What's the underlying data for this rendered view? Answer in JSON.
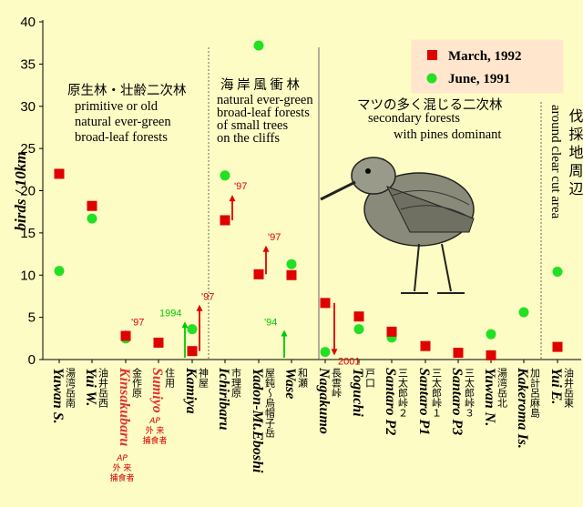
{
  "chart_data": {
    "type": "scatter",
    "title": "",
    "xlabel": "",
    "ylabel": "birds / 10km",
    "ylim": [
      0,
      40
    ],
    "yticks": [
      0,
      5,
      10,
      15,
      20,
      25,
      30,
      35,
      40
    ],
    "legend_position": "top-right",
    "colors": {
      "march": "#e00000",
      "june": "#22e022",
      "annotation": "#e00000",
      "annotation_june": "#00c800"
    },
    "sites": [
      {
        "name": "Yuwan S.",
        "color": "#000",
        "jp": "湯湾岳南",
        "sub": ""
      },
      {
        "name": "Yui W.",
        "color": "#000",
        "jp": "油井岳西",
        "sub": ""
      },
      {
        "name": "Kinsakubaru",
        "color": "#e03030",
        "jp": "金作原",
        "sub": "AP 外 来 捕食者"
      },
      {
        "name": "Sumiyo",
        "color": "#e03030",
        "jp": "住用",
        "sub": "AP 外 来 捕食者"
      },
      {
        "name": "Kamiya",
        "color": "#000",
        "jp": "神屋",
        "sub": ""
      },
      {
        "name": "Ichiribaru",
        "color": "#000",
        "jp": "市理原",
        "sub": ""
      },
      {
        "name": "Yadon-Mt.Eboshi",
        "color": "#000",
        "jp": "屋鈍～烏帽子岳",
        "sub": ""
      },
      {
        "name": "Wase",
        "color": "#000",
        "jp": "和瀬",
        "sub": ""
      },
      {
        "name": "Nagakumo",
        "color": "#000",
        "jp": "長雲峠",
        "sub": ""
      },
      {
        "name": "Toguchi",
        "color": "#000",
        "jp": "戸口",
        "sub": ""
      },
      {
        "name": "Santaro P2",
        "color": "#000",
        "jp": "三太郎峠２",
        "sub": ""
      },
      {
        "name": "Santaro P1",
        "color": "#000",
        "jp": "三太郎峠１",
        "sub": ""
      },
      {
        "name": "Santaro P3",
        "color": "#000",
        "jp": "三太郎峠３",
        "sub": ""
      },
      {
        "name": "Yuwan N.",
        "color": "#000",
        "jp": "湯湾岳北",
        "sub": ""
      },
      {
        "name": "Kakeroma Is.",
        "color": "#000",
        "jp": "加計呂麻島",
        "sub": ""
      },
      {
        "name": "Yui E.",
        "color": "#000",
        "jp": "油井岳東",
        "sub": ""
      }
    ],
    "series": [
      {
        "name": "March, 1992",
        "marker": "square",
        "values": [
          22,
          18.2,
          2.8,
          2.0,
          1.0,
          16.5,
          10.1,
          10.0,
          6.7,
          5.1,
          3.3,
          1.6,
          0.8,
          0.5,
          null,
          1.5
        ]
      },
      {
        "name": "June, 1991",
        "marker": "circle",
        "values": [
          10.5,
          16.7,
          2.5,
          null,
          3.6,
          21.8,
          37.2,
          11.3,
          0.9,
          3.6,
          2.6,
          null,
          null,
          3.0,
          5.6,
          10.4
        ]
      }
    ],
    "regions": [
      {
        "lines": [
          "原生林・壮齢二次林",
          "primitive or old",
          "natural ever-green",
          "broad-leaf forests"
        ]
      },
      {
        "lines": [
          "海 岸 風 衝 林",
          "natural ever-green",
          "broad-leaf forests",
          "of small trees",
          "on the cliffs"
        ]
      },
      {
        "lines": [
          "マツの多く混じる二次林",
          "secondary forests",
          "with pines dominant"
        ]
      },
      {
        "lines": [
          "伐 採 地 周 辺",
          "around clear cut area"
        ]
      }
    ],
    "annotations": [
      {
        "text": "'97",
        "site": 2,
        "from": 2.8,
        "to": 3.5,
        "direction": "up"
      },
      {
        "text": "1994",
        "site": 4,
        "from": null,
        "to": 4.5,
        "direction": "up"
      },
      {
        "text": "'97",
        "site": 4,
        "from": 1.0,
        "to": 6.5,
        "direction": "up"
      },
      {
        "text": "'97",
        "site": 5,
        "from": 16.5,
        "to": 19.5,
        "direction": "up"
      },
      {
        "text": "'97",
        "site": 6,
        "from": 10.1,
        "to": 13.5,
        "direction": "up"
      },
      {
        "text": "'94",
        "site": 7,
        "from": null,
        "to": 3.5,
        "direction": "up"
      },
      {
        "text": "2001",
        "site": 8,
        "from": 6.7,
        "to": 0.5,
        "direction": "down"
      }
    ]
  }
}
